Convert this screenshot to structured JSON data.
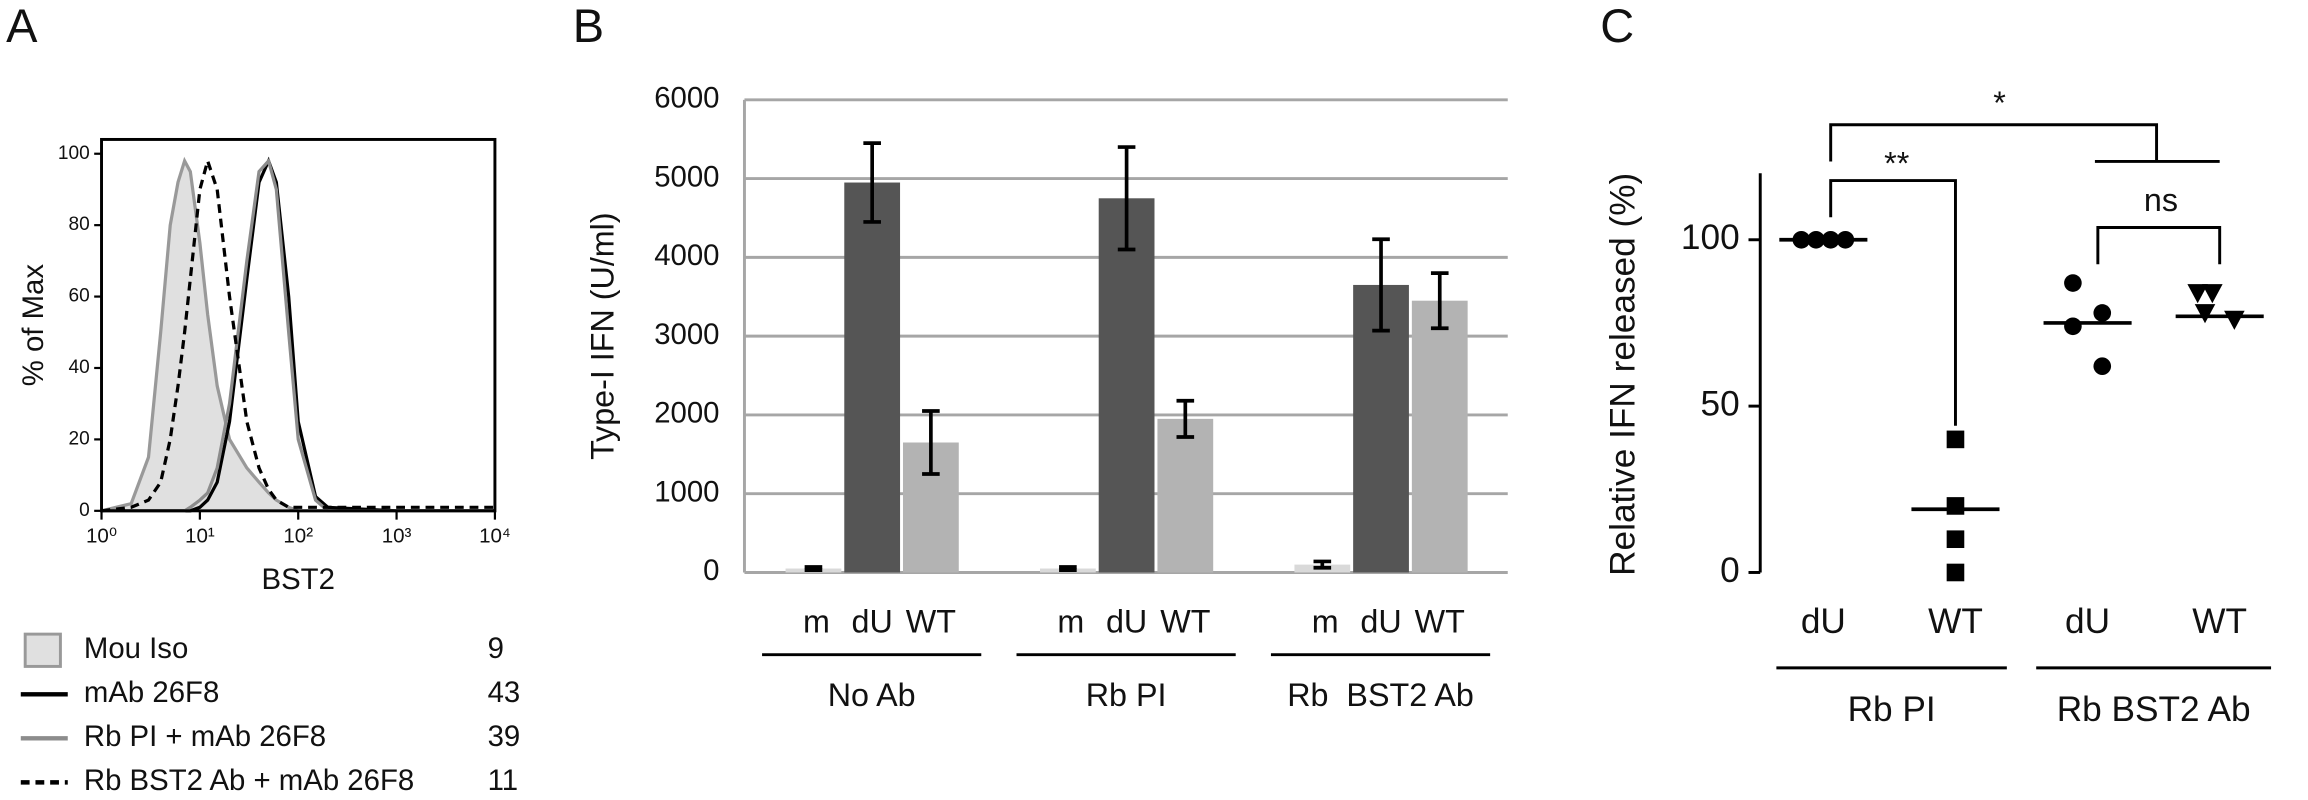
{
  "chart_data": [
    {
      "type": "histogram-overlay",
      "label": "A",
      "xlabel": "BST2",
      "ylabel": "% of Max",
      "log_x": true,
      "x": [
        1,
        2,
        3,
        4,
        5,
        6,
        7,
        8,
        10,
        12,
        15,
        20,
        30,
        40,
        50,
        60,
        80,
        100,
        150,
        200,
        1000,
        10000
      ],
      "series": [
        {
          "name": "Mou Iso",
          "mfi": 9,
          "color": "#999999",
          "fill": "#e0e0e0",
          "dash": false,
          "values": [
            0,
            2,
            15,
            50,
            80,
            92,
            98,
            95,
            75,
            55,
            35,
            20,
            12,
            8,
            5,
            3,
            1,
            0,
            0,
            0,
            0,
            0
          ]
        },
        {
          "name": "mAb 26F8",
          "mfi": 43,
          "color": "#000000",
          "dash": false,
          "values": [
            0,
            0,
            0,
            0,
            0,
            0,
            0,
            0,
            1,
            3,
            8,
            25,
            65,
            92,
            98,
            92,
            60,
            25,
            4,
            1,
            0,
            0
          ]
        },
        {
          "name": "Rb PI + mAb 26F8",
          "mfi": 39,
          "color": "#8c8c8c",
          "dash": false,
          "values": [
            0,
            0,
            0,
            0,
            0,
            0,
            0,
            1,
            3,
            5,
            12,
            30,
            70,
            95,
            98,
            90,
            50,
            20,
            3,
            0,
            0,
            0
          ]
        },
        {
          "name": "Rb BST2 Ab + mAb 26F8",
          "mfi": 11,
          "color": "#000000",
          "dash": true,
          "values": [
            0,
            1,
            3,
            8,
            20,
            35,
            50,
            65,
            90,
            98,
            90,
            60,
            25,
            12,
            6,
            3,
            1,
            1,
            1,
            1,
            1,
            1
          ]
        }
      ],
      "xlim": [
        1,
        10000
      ],
      "xticks": [
        {
          "value": 1,
          "label": "10⁰"
        },
        {
          "value": 10,
          "label": "10¹"
        },
        {
          "value": 100,
          "label": "10²"
        },
        {
          "value": 1000,
          "label": "10³"
        },
        {
          "value": 10000,
          "label": "10⁴"
        }
      ],
      "ylim": [
        0,
        104
      ],
      "yticks": [
        0,
        20,
        40,
        60,
        80,
        100
      ]
    },
    {
      "type": "grouped-bar",
      "label": "B",
      "ylabel": "Type-I IFN (U/ml)",
      "categories": [
        "m",
        "dU",
        "WT",
        "m",
        "dU",
        "WT",
        "m",
        "dU",
        "WT"
      ],
      "groups": [
        "No Ab",
        "Rb PI",
        "Rb  BST2 Ab"
      ],
      "values": [
        50,
        4950,
        1650,
        50,
        4750,
        1950,
        100,
        3650,
        3450
      ],
      "errors": [
        20,
        500,
        400,
        20,
        650,
        230,
        40,
        580,
        350
      ],
      "colors": [
        "#d9d9d9",
        "#555555",
        "#b3b3b3",
        "#d9d9d9",
        "#555555",
        "#b3b3b3",
        "#d9d9d9",
        "#555555",
        "#b3b3b3"
      ],
      "ylim": [
        0,
        6000
      ],
      "yticks": [
        0,
        1000,
        2000,
        3000,
        4000,
        5000,
        6000
      ],
      "grid": true
    },
    {
      "type": "dot-plot",
      "label": "C",
      "ylabel": "Relative IFN released (%)",
      "categories": [
        "dU",
        "WT",
        "dU",
        "WT"
      ],
      "groups": [
        "Rb PI",
        "Rb BST2 Ab"
      ],
      "markers": [
        "circle",
        "square",
        "circle",
        "triangle"
      ],
      "points": [
        [
          100,
          100,
          100,
          100
        ],
        [
          40,
          20,
          10,
          0
        ],
        [
          87,
          78,
          74,
          62
        ],
        [
          84,
          84,
          78,
          76
        ]
      ],
      "means": [
        100,
        19,
        75,
        77
      ],
      "significance": [
        "**",
        "ns",
        "*"
      ],
      "ylim": [
        0,
        120
      ],
      "yticks": [
        0,
        50,
        100
      ]
    }
  ]
}
